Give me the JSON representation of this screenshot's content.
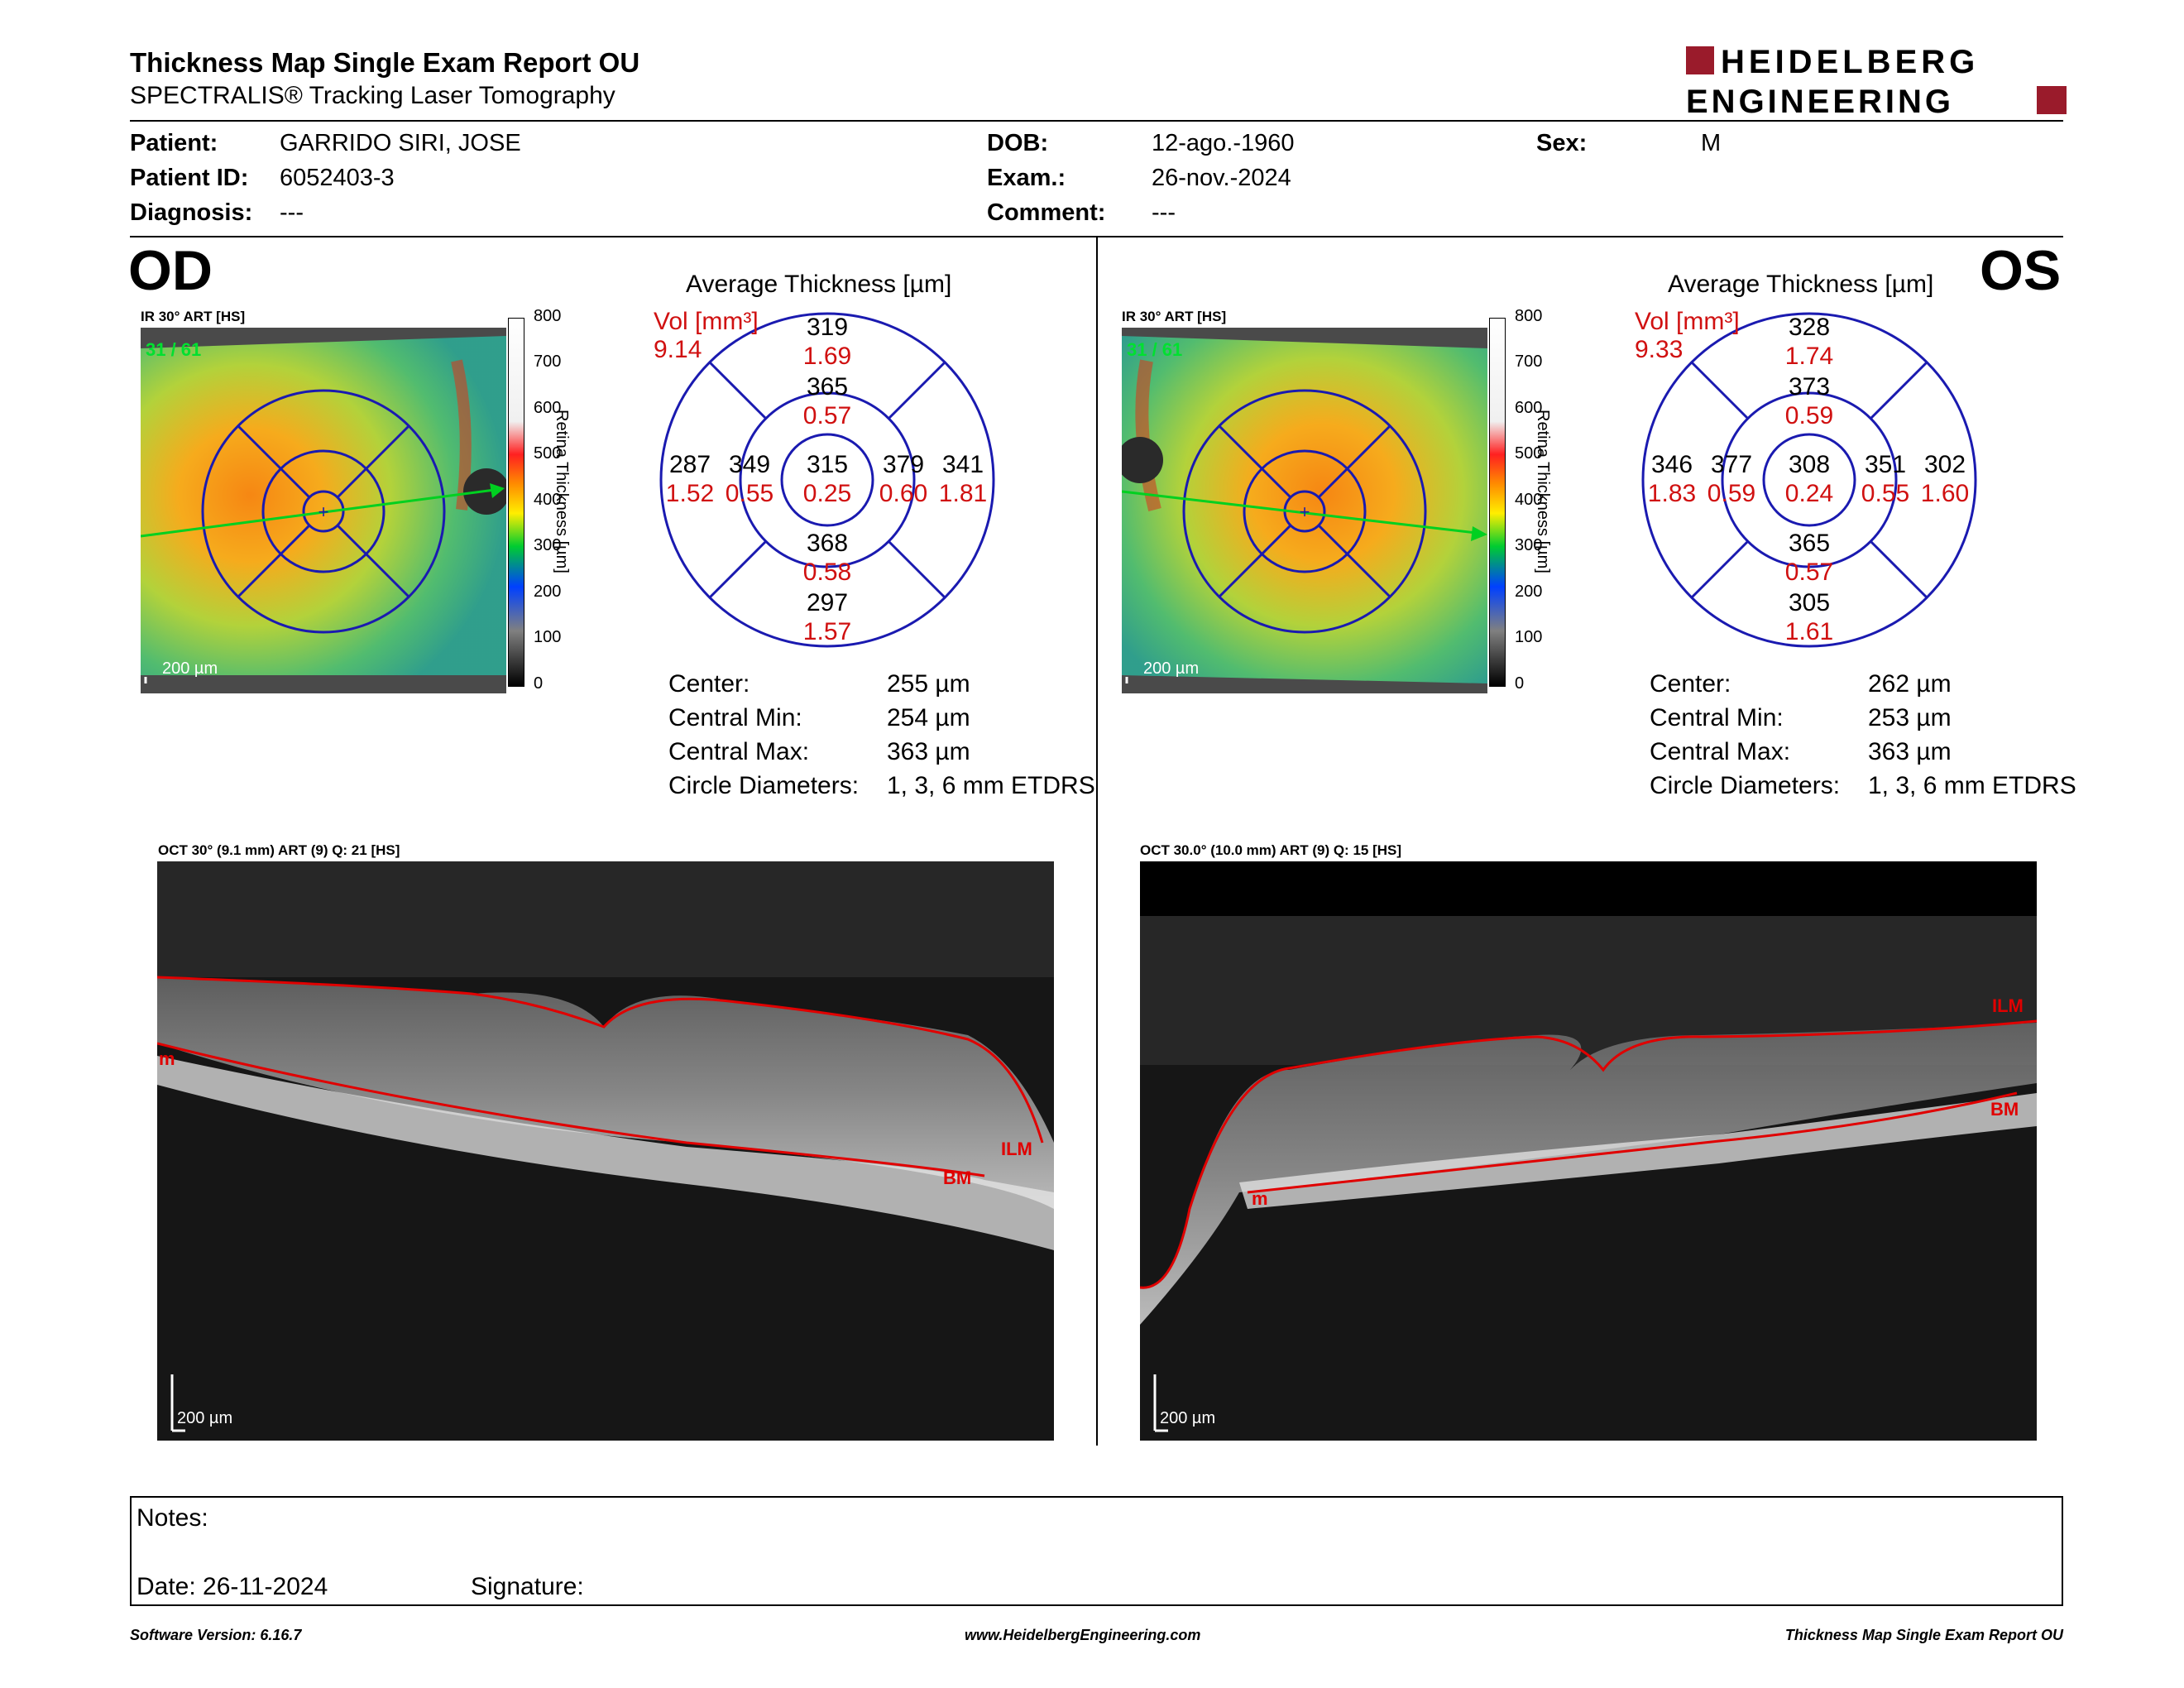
{
  "header": {
    "title": "Thickness Map Single Exam Report OU",
    "subtitle": "SPECTRALIS® Tracking Laser Tomography",
    "logo_line1": "HEIDELBERG",
    "logo_line2": "ENGINEERING"
  },
  "patient": {
    "patient_label": "Patient:",
    "patient_value": "GARRIDO SIRI, JOSE",
    "id_label": "Patient ID:",
    "id_value": "6052403-3",
    "diagnosis_label": "Diagnosis:",
    "diagnosis_value": "---",
    "dob_label": "DOB:",
    "dob_value": "12-ago.-1960",
    "exam_label": "Exam.:",
    "exam_value": "26-nov.-2024",
    "comment_label": "Comment:",
    "comment_value": "---",
    "sex_label": "Sex:",
    "sex_value": "M"
  },
  "colorbar": {
    "ticks": [
      "800",
      "700",
      "600",
      "500",
      "400",
      "300",
      "200",
      "100",
      "0"
    ],
    "label": "Retina Thickness [µm]"
  },
  "od": {
    "eye": "OD",
    "fundus_label": "IR 30° ART [HS]",
    "frame_counter": "31 / 61",
    "scale_label": "200 µm",
    "avg_title": "Average Thickness [µm]",
    "vol_label": "Vol [mm³]",
    "vol_value": "9.14",
    "grid": {
      "top_outer": "319",
      "top_outer_vol": "1.69",
      "top_inner": "365",
      "top_inner_vol": "0.57",
      "left_outer": "287",
      "left_outer_vol": "1.52",
      "left_inner": "349",
      "left_inner_vol": "0.55",
      "center": "315",
      "center_vol": "0.25",
      "right_inner": "379",
      "right_inner_vol": "0.60",
      "right_outer": "341",
      "right_outer_vol": "1.81",
      "bottom_inner": "368",
      "bottom_inner_vol": "0.58",
      "bottom_outer": "297",
      "bottom_outer_vol": "1.57"
    },
    "stats": [
      {
        "label": "Center:",
        "value": "255 µm"
      },
      {
        "label": "Central Min:",
        "value": "254 µm"
      },
      {
        "label": "Central Max:",
        "value": "363 µm"
      },
      {
        "label": "Circle Diameters:",
        "value": "1, 3, 6 mm ETDRS"
      }
    ],
    "oct_label": "OCT 30° (9.1 mm) ART (9) Q: 21 [HS]",
    "oct_scale": "200 µm",
    "seg_ilm": "ILM",
    "seg_bm": "BM",
    "seg_m": "m"
  },
  "os": {
    "eye": "OS",
    "fundus_label": "IR 30° ART [HS]",
    "frame_counter": "31 / 61",
    "scale_label": "200 µm",
    "avg_title": "Average Thickness [µm]",
    "vol_label": "Vol [mm³]",
    "vol_value": "9.33",
    "grid": {
      "top_outer": "328",
      "top_outer_vol": "1.74",
      "top_inner": "373",
      "top_inner_vol": "0.59",
      "left_outer": "346",
      "left_outer_vol": "1.83",
      "left_inner": "377",
      "left_inner_vol": "0.59",
      "center": "308",
      "center_vol": "0.24",
      "right_inner": "351",
      "right_inner_vol": "0.55",
      "right_outer": "302",
      "right_outer_vol": "1.60",
      "bottom_inner": "365",
      "bottom_inner_vol": "0.57",
      "bottom_outer": "305",
      "bottom_outer_vol": "1.61"
    },
    "stats": [
      {
        "label": "Center:",
        "value": "262 µm"
      },
      {
        "label": "Central Min:",
        "value": "253 µm"
      },
      {
        "label": "Central Max:",
        "value": "363 µm"
      },
      {
        "label": "Circle Diameters:",
        "value": "1, 3, 6 mm ETDRS"
      }
    ],
    "oct_label": "OCT 30.0° (10.0 mm) ART (9) Q: 15 [HS]",
    "oct_scale": "200 µm",
    "seg_ilm": "ILM",
    "seg_bm": "BM",
    "seg_m": "m"
  },
  "notes": {
    "notes_label": "Notes:",
    "date_label": "Date: 26-11-2024",
    "signature_label": "Signature:"
  },
  "footer": {
    "software": "Software Version: 6.16.7",
    "url": "www.HeidelbergEngineering.com",
    "report": "Thickness Map Single Exam Report OU"
  },
  "colors": {
    "grid_line": "#1a1ab0",
    "volume_red": "#d01010",
    "logo_red": "#9a1b2b",
    "scan_green": "#00d020",
    "seg_red": "#e00000"
  }
}
